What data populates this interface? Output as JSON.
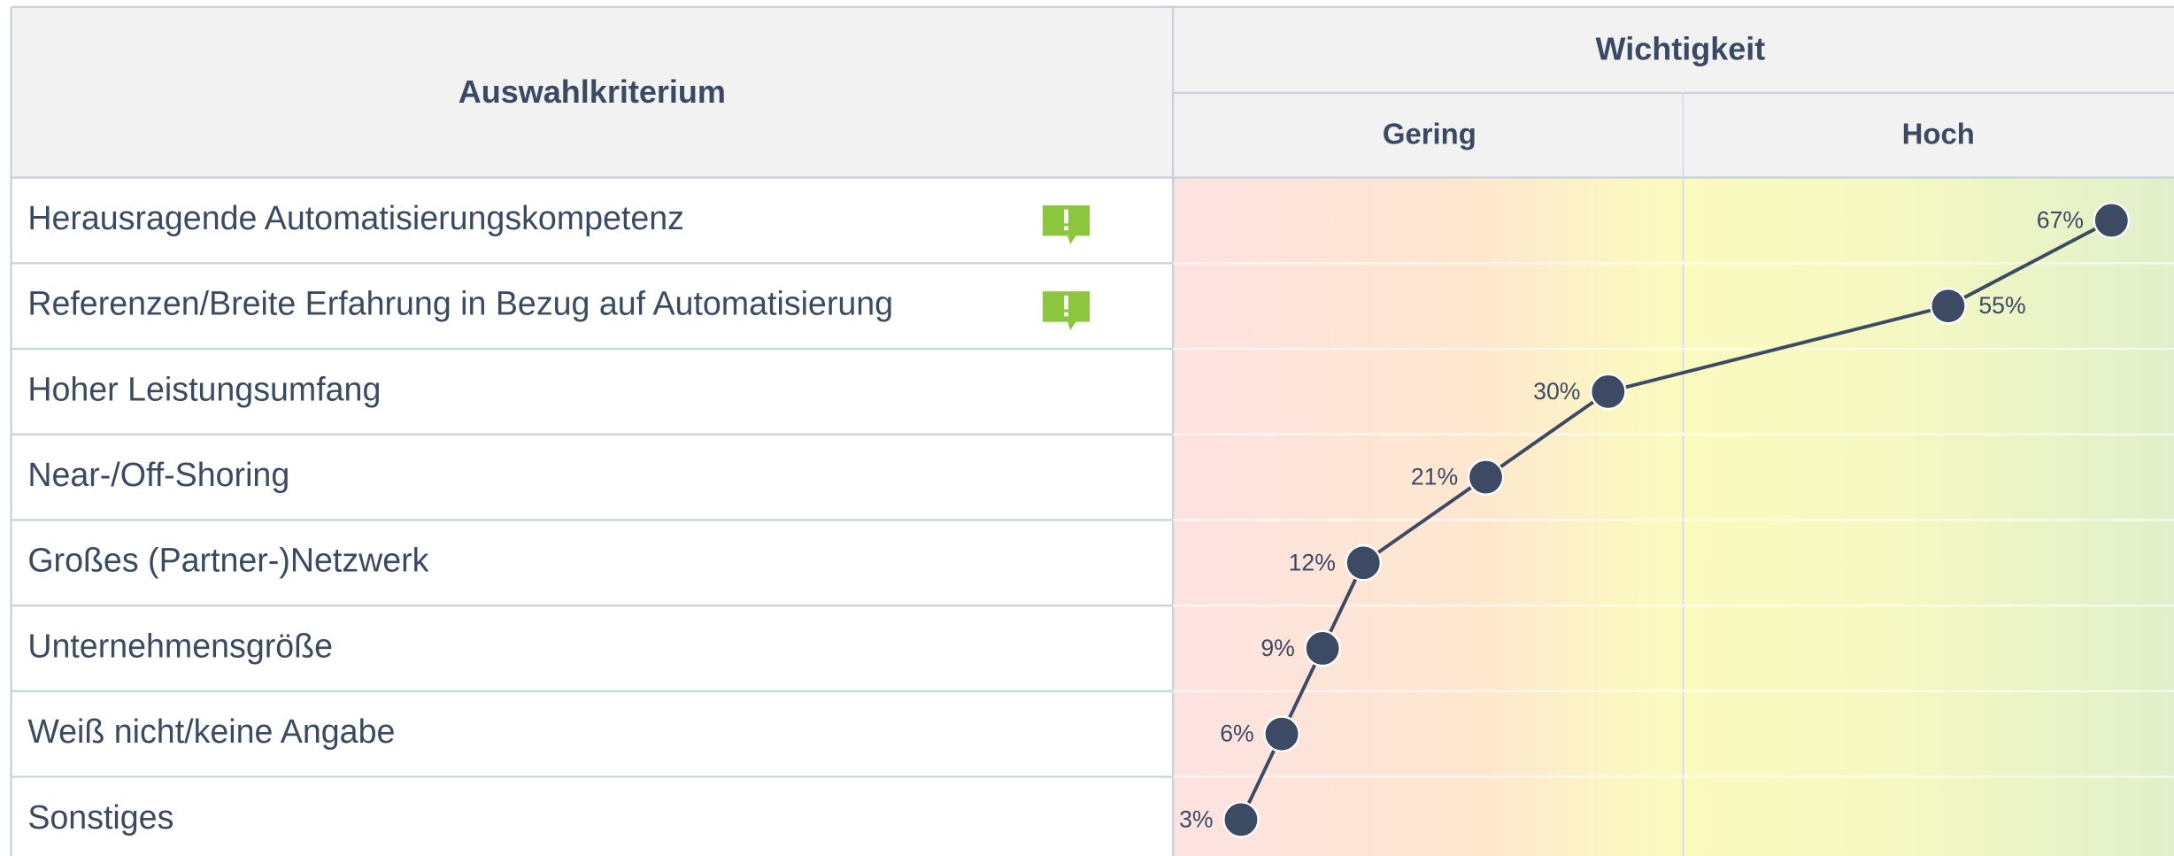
{
  "header": {
    "criterion": "Auswahlkriterium",
    "importance": "Wichtigkeit",
    "low": "Gering",
    "high": "Hoch"
  },
  "chart_data": {
    "type": "line",
    "categories": [
      "Herausragende Automatisierungskompetenz",
      "Referenzen/Breite Erfahrung in Bezug auf Automatisierung",
      "Hoher Leistungsumfang",
      "Near-/Off-Shoring",
      "Großes (Partner-)Netzwerk",
      "Unternehmensgröße",
      "Weiß nicht/keine Angabe",
      "Sonstiges"
    ],
    "values": [
      67,
      55,
      30,
      21,
      12,
      9,
      6,
      3
    ],
    "value_labels": [
      "67%",
      "55%",
      "30%",
      "21%",
      "12%",
      "9%",
      "6%",
      "3%"
    ],
    "color": "#3d4a63",
    "xlim": [
      -2,
      71.6
    ]
  }
}
